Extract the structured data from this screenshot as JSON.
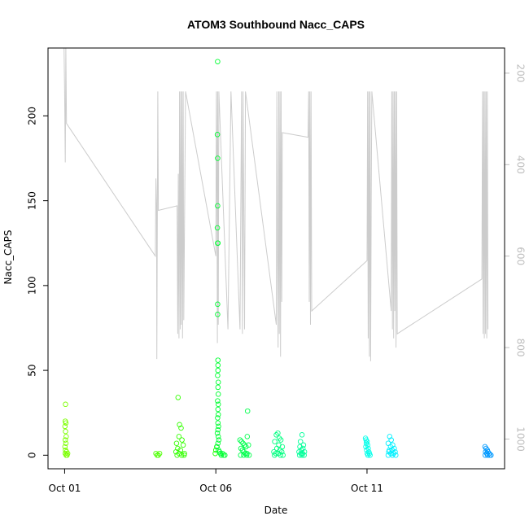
{
  "chart_data": {
    "type": "scatter",
    "title": "ATOM3 Southbound Nacc_CAPS",
    "xlabel": "Date",
    "ylabel": "Nacc_CAPS",
    "xlim": [
      -0.55,
      14.55
    ],
    "ylim": [
      -8,
      240
    ],
    "y_ticks": [
      0,
      50,
      100,
      150,
      200
    ],
    "y_tick_labels": [
      "0",
      "50",
      "100",
      "150",
      "200"
    ],
    "x_ticks": [
      0,
      5,
      10
    ],
    "x_tick_labels": [
      "Oct 01",
      "Oct 06",
      "Oct 11"
    ],
    "right_axis": {
      "label": "",
      "color": "#bebebe",
      "ylim_inverted": [
        145,
        1065
      ],
      "ticks": [
        200,
        400,
        600,
        800,
        1000
      ],
      "tick_labels": [
        "200",
        "400",
        "600",
        "800",
        "1000"
      ]
    },
    "points": [
      {
        "x": 0.03,
        "y": 30,
        "color": "#7cff00"
      },
      {
        "x": 0.02,
        "y": 20,
        "color": "#7cff00"
      },
      {
        "x": 0.04,
        "y": 19,
        "color": "#7cff00"
      },
      {
        "x": 0.01,
        "y": 17,
        "color": "#7cff00"
      },
      {
        "x": 0.03,
        "y": 14,
        "color": "#7cff00"
      },
      {
        "x": 0.05,
        "y": 11,
        "color": "#7cff00"
      },
      {
        "x": 0.02,
        "y": 9,
        "color": "#7cff00"
      },
      {
        "x": 0.04,
        "y": 7,
        "color": "#7cff00"
      },
      {
        "x": 0.01,
        "y": 5,
        "color": "#7cff00"
      },
      {
        "x": 0.03,
        "y": 3,
        "color": "#7cff00"
      },
      {
        "x": 0.06,
        "y": 2,
        "color": "#7cff00"
      },
      {
        "x": 0.02,
        "y": 1,
        "color": "#7cff00"
      },
      {
        "x": 0.05,
        "y": 0,
        "color": "#7cff00"
      },
      {
        "x": 0.08,
        "y": 0,
        "color": "#7cff00"
      },
      {
        "x": 0.1,
        "y": 1,
        "color": "#7cff00"
      },
      {
        "x": 3.02,
        "y": 1,
        "color": "#4dff00"
      },
      {
        "x": 3.06,
        "y": 0,
        "color": "#4dff00"
      },
      {
        "x": 3.1,
        "y": 0,
        "color": "#4dff00"
      },
      {
        "x": 3.14,
        "y": 1,
        "color": "#4dff00"
      },
      {
        "x": 3.75,
        "y": 34,
        "color": "#33ff00"
      },
      {
        "x": 3.8,
        "y": 18,
        "color": "#33ff00"
      },
      {
        "x": 3.85,
        "y": 16,
        "color": "#33ff00"
      },
      {
        "x": 3.78,
        "y": 11,
        "color": "#33ff00"
      },
      {
        "x": 3.88,
        "y": 9,
        "color": "#33ff00"
      },
      {
        "x": 3.7,
        "y": 7,
        "color": "#33ff00"
      },
      {
        "x": 3.92,
        "y": 6,
        "color": "#33ff00"
      },
      {
        "x": 3.74,
        "y": 4,
        "color": "#33ff00"
      },
      {
        "x": 3.83,
        "y": 3,
        "color": "#33ff00"
      },
      {
        "x": 3.68,
        "y": 2,
        "color": "#33ff00"
      },
      {
        "x": 3.96,
        "y": 1,
        "color": "#33ff00"
      },
      {
        "x": 3.79,
        "y": 1,
        "color": "#33ff00"
      },
      {
        "x": 3.87,
        "y": 0,
        "color": "#33ff00"
      },
      {
        "x": 3.72,
        "y": 0,
        "color": "#33ff00"
      },
      {
        "x": 3.95,
        "y": 0,
        "color": "#33ff00"
      },
      {
        "x": 4.98,
        "y": 1,
        "color": "#1aff00"
      },
      {
        "x": 5.0,
        "y": 3,
        "color": "#1aff00"
      },
      {
        "x": 5.03,
        "y": 5,
        "color": "#1aff00"
      },
      {
        "x": 5.06,
        "y": 232,
        "color": "#00ff33"
      },
      {
        "x": 5.05,
        "y": 189,
        "color": "#00ff33"
      },
      {
        "x": 5.06,
        "y": 175,
        "color": "#00ff33"
      },
      {
        "x": 5.06,
        "y": 147,
        "color": "#00ff33"
      },
      {
        "x": 5.05,
        "y": 134,
        "color": "#00ff33"
      },
      {
        "x": 5.06,
        "y": 125,
        "color": "#00ff33"
      },
      {
        "x": 5.07,
        "y": 125,
        "color": "#00ff33"
      },
      {
        "x": 5.06,
        "y": 89,
        "color": "#00ff33"
      },
      {
        "x": 5.06,
        "y": 83,
        "color": "#00ff33"
      },
      {
        "x": 5.07,
        "y": 56,
        "color": "#00ff33"
      },
      {
        "x": 5.07,
        "y": 53,
        "color": "#00ff33"
      },
      {
        "x": 5.07,
        "y": 50,
        "color": "#00ff33"
      },
      {
        "x": 5.06,
        "y": 47,
        "color": "#00ff33"
      },
      {
        "x": 5.08,
        "y": 43,
        "color": "#00ff33"
      },
      {
        "x": 5.07,
        "y": 40,
        "color": "#00ff33"
      },
      {
        "x": 5.08,
        "y": 36,
        "color": "#00ff33"
      },
      {
        "x": 5.06,
        "y": 32,
        "color": "#00ff33"
      },
      {
        "x": 5.08,
        "y": 30,
        "color": "#00ff33"
      },
      {
        "x": 5.07,
        "y": 27,
        "color": "#00ff33"
      },
      {
        "x": 5.08,
        "y": 24,
        "color": "#00ff33"
      },
      {
        "x": 5.06,
        "y": 22,
        "color": "#00ff33"
      },
      {
        "x": 5.07,
        "y": 19,
        "color": "#00ff33"
      },
      {
        "x": 5.09,
        "y": 17,
        "color": "#00ff33"
      },
      {
        "x": 5.07,
        "y": 15,
        "color": "#00ff33"
      },
      {
        "x": 5.05,
        "y": 13,
        "color": "#00ff33"
      },
      {
        "x": 5.08,
        "y": 11,
        "color": "#00ff33"
      },
      {
        "x": 5.1,
        "y": 9,
        "color": "#00ff33"
      },
      {
        "x": 5.07,
        "y": 7,
        "color": "#00ff33"
      },
      {
        "x": 5.04,
        "y": 5,
        "color": "#00ff33"
      },
      {
        "x": 5.09,
        "y": 3,
        "color": "#00ff33"
      },
      {
        "x": 5.12,
        "y": 2,
        "color": "#00ff33"
      },
      {
        "x": 5.15,
        "y": 1,
        "color": "#00ff33"
      },
      {
        "x": 5.18,
        "y": 0,
        "color": "#00ff33"
      },
      {
        "x": 5.22,
        "y": 1,
        "color": "#00ff33"
      },
      {
        "x": 5.26,
        "y": 0,
        "color": "#00ff33"
      },
      {
        "x": 5.3,
        "y": 0,
        "color": "#00ff33"
      },
      {
        "x": 5.8,
        "y": 9,
        "color": "#00ff4d"
      },
      {
        "x": 5.85,
        "y": 8,
        "color": "#00ff4d"
      },
      {
        "x": 5.9,
        "y": 7,
        "color": "#00ff4d"
      },
      {
        "x": 5.95,
        "y": 6,
        "color": "#00ff4d"
      },
      {
        "x": 6.0,
        "y": 5,
        "color": "#00ff4d"
      },
      {
        "x": 6.05,
        "y": 26,
        "color": "#00ff4d"
      },
      {
        "x": 6.04,
        "y": 11,
        "color": "#00ff4d"
      },
      {
        "x": 6.08,
        "y": 6,
        "color": "#00ff4d"
      },
      {
        "x": 5.83,
        "y": 4,
        "color": "#00ff4d"
      },
      {
        "x": 5.88,
        "y": 3,
        "color": "#00ff4d"
      },
      {
        "x": 5.93,
        "y": 2,
        "color": "#00ff4d"
      },
      {
        "x": 5.98,
        "y": 1,
        "color": "#00ff4d"
      },
      {
        "x": 6.03,
        "y": 1,
        "color": "#00ff4d"
      },
      {
        "x": 5.82,
        "y": 0,
        "color": "#00ff4d"
      },
      {
        "x": 5.92,
        "y": 0,
        "color": "#00ff4d"
      },
      {
        "x": 6.02,
        "y": 0,
        "color": "#00ff4d"
      },
      {
        "x": 6.1,
        "y": 0,
        "color": "#00ff4d"
      },
      {
        "x": 7.0,
        "y": 12,
        "color": "#00ff80"
      },
      {
        "x": 7.05,
        "y": 13,
        "color": "#00ff80"
      },
      {
        "x": 7.1,
        "y": 10,
        "color": "#00ff80"
      },
      {
        "x": 7.15,
        "y": 9,
        "color": "#00ff80"
      },
      {
        "x": 6.95,
        "y": 8,
        "color": "#00ff80"
      },
      {
        "x": 7.08,
        "y": 6,
        "color": "#00ff80"
      },
      {
        "x": 7.2,
        "y": 5,
        "color": "#00ff80"
      },
      {
        "x": 7.02,
        "y": 4,
        "color": "#00ff80"
      },
      {
        "x": 7.12,
        "y": 3,
        "color": "#00ff80"
      },
      {
        "x": 6.92,
        "y": 2,
        "color": "#00ff80"
      },
      {
        "x": 7.18,
        "y": 2,
        "color": "#00ff80"
      },
      {
        "x": 7.06,
        "y": 1,
        "color": "#00ff80"
      },
      {
        "x": 6.98,
        "y": 1,
        "color": "#00ff80"
      },
      {
        "x": 7.14,
        "y": 0,
        "color": "#00ff80"
      },
      {
        "x": 6.94,
        "y": 0,
        "color": "#00ff80"
      },
      {
        "x": 7.22,
        "y": 0,
        "color": "#00ff80"
      },
      {
        "x": 7.85,
        "y": 12,
        "color": "#00ff99"
      },
      {
        "x": 7.8,
        "y": 8,
        "color": "#00ff99"
      },
      {
        "x": 7.9,
        "y": 6,
        "color": "#00ff99"
      },
      {
        "x": 7.78,
        "y": 5,
        "color": "#00ff99"
      },
      {
        "x": 7.88,
        "y": 4,
        "color": "#00ff99"
      },
      {
        "x": 7.83,
        "y": 3,
        "color": "#00ff99"
      },
      {
        "x": 7.75,
        "y": 2,
        "color": "#00ff99"
      },
      {
        "x": 7.93,
        "y": 2,
        "color": "#00ff99"
      },
      {
        "x": 7.82,
        "y": 1,
        "color": "#00ff99"
      },
      {
        "x": 7.87,
        "y": 1,
        "color": "#00ff99"
      },
      {
        "x": 7.77,
        "y": 0,
        "color": "#00ff99"
      },
      {
        "x": 7.92,
        "y": 0,
        "color": "#00ff99"
      },
      {
        "x": 7.85,
        "y": 0,
        "color": "#00ff99"
      },
      {
        "x": 9.95,
        "y": 10,
        "color": "#00ffea"
      },
      {
        "x": 9.97,
        "y": 9,
        "color": "#00ffea"
      },
      {
        "x": 10.0,
        "y": 8,
        "color": "#00ffea"
      },
      {
        "x": 9.98,
        "y": 7,
        "color": "#00ffea"
      },
      {
        "x": 10.02,
        "y": 6,
        "color": "#00ffea"
      },
      {
        "x": 9.96,
        "y": 5,
        "color": "#00ffea"
      },
      {
        "x": 10.04,
        "y": 4,
        "color": "#00ffea"
      },
      {
        "x": 9.99,
        "y": 3,
        "color": "#00ffea"
      },
      {
        "x": 10.06,
        "y": 2,
        "color": "#00ffea"
      },
      {
        "x": 10.01,
        "y": 1,
        "color": "#00ffea"
      },
      {
        "x": 10.08,
        "y": 1,
        "color": "#00ffea"
      },
      {
        "x": 10.03,
        "y": 0,
        "color": "#00ffea"
      },
      {
        "x": 10.1,
        "y": 0,
        "color": "#00ffea"
      },
      {
        "x": 10.75,
        "y": 11,
        "color": "#00f0ff"
      },
      {
        "x": 10.8,
        "y": 9,
        "color": "#00f0ff"
      },
      {
        "x": 10.7,
        "y": 7,
        "color": "#00f0ff"
      },
      {
        "x": 10.85,
        "y": 6,
        "color": "#00f0ff"
      },
      {
        "x": 10.78,
        "y": 5,
        "color": "#00f0ff"
      },
      {
        "x": 10.9,
        "y": 4,
        "color": "#00f0ff"
      },
      {
        "x": 10.74,
        "y": 3,
        "color": "#00f0ff"
      },
      {
        "x": 10.83,
        "y": 3,
        "color": "#00f0ff"
      },
      {
        "x": 10.93,
        "y": 2,
        "color": "#00f0ff"
      },
      {
        "x": 10.72,
        "y": 2,
        "color": "#00f0ff"
      },
      {
        "x": 10.88,
        "y": 1,
        "color": "#00f0ff"
      },
      {
        "x": 10.79,
        "y": 1,
        "color": "#00f0ff"
      },
      {
        "x": 10.95,
        "y": 0,
        "color": "#00f0ff"
      },
      {
        "x": 10.7,
        "y": 0,
        "color": "#00f0ff"
      },
      {
        "x": 10.84,
        "y": 0,
        "color": "#00f0ff"
      },
      {
        "x": 13.9,
        "y": 5,
        "color": "#0099ff"
      },
      {
        "x": 13.94,
        "y": 4,
        "color": "#0099ff"
      },
      {
        "x": 13.98,
        "y": 3,
        "color": "#0099ff"
      },
      {
        "x": 13.92,
        "y": 2,
        "color": "#0099ff"
      },
      {
        "x": 14.0,
        "y": 2,
        "color": "#0099ff"
      },
      {
        "x": 13.96,
        "y": 1,
        "color": "#0099ff"
      },
      {
        "x": 14.04,
        "y": 1,
        "color": "#0099ff"
      },
      {
        "x": 13.91,
        "y": 0,
        "color": "#0099ff"
      },
      {
        "x": 13.99,
        "y": 0,
        "color": "#0099ff"
      },
      {
        "x": 14.06,
        "y": 0,
        "color": "#0099ff"
      },
      {
        "x": 14.1,
        "y": 0,
        "color": "#0099ff"
      }
    ],
    "track_series": {
      "name": "right-axis trace",
      "color": "#cccccc",
      "points": [
        [
          -0.02,
          60
        ],
        [
          0.0,
          240
        ],
        [
          0.02,
          395
        ],
        [
          0.04,
          60
        ],
        [
          0.06,
          310
        ],
        [
          3.0,
          600
        ],
        [
          3.02,
          430
        ],
        [
          3.04,
          490
        ],
        [
          3.05,
          825
        ],
        [
          3.08,
          240
        ],
        [
          3.1,
          500
        ],
        [
          3.72,
          490
        ],
        [
          3.74,
          770
        ],
        [
          3.76,
          420
        ],
        [
          3.78,
          780
        ],
        [
          3.8,
          240
        ],
        [
          3.82,
          760
        ],
        [
          3.84,
          240
        ],
        [
          3.86,
          750
        ],
        [
          3.88,
          240
        ],
        [
          3.9,
          780
        ],
        [
          3.92,
          240
        ],
        [
          3.94,
          740
        ],
        [
          4.0,
          240
        ],
        [
          5.0,
          600
        ],
        [
          5.02,
          240
        ],
        [
          5.04,
          520
        ],
        [
          5.05,
          790
        ],
        [
          5.06,
          240
        ],
        [
          5.08,
          750
        ],
        [
          5.1,
          240
        ],
        [
          5.4,
          760
        ],
        [
          5.5,
          240
        ],
        [
          5.8,
          760
        ],
        [
          5.85,
          240
        ],
        [
          5.88,
          770
        ],
        [
          5.9,
          240
        ],
        [
          5.95,
          760
        ],
        [
          5.98,
          240
        ],
        [
          7.0,
          750
        ],
        [
          7.02,
          240
        ],
        [
          7.04,
          610
        ],
        [
          7.06,
          800
        ],
        [
          7.08,
          240
        ],
        [
          7.1,
          770
        ],
        [
          7.12,
          240
        ],
        [
          7.14,
          820
        ],
        [
          7.16,
          240
        ],
        [
          7.18,
          700
        ],
        [
          7.2,
          330
        ],
        [
          8.05,
          340
        ],
        [
          8.07,
          240
        ],
        [
          8.09,
          700
        ],
        [
          8.11,
          240
        ],
        [
          8.13,
          750
        ],
        [
          8.15,
          240
        ],
        [
          8.17,
          720
        ],
        [
          10.0,
          610
        ],
        [
          10.02,
          240
        ],
        [
          10.04,
          780
        ],
        [
          10.06,
          240
        ],
        [
          10.08,
          820
        ],
        [
          10.1,
          240
        ],
        [
          10.12,
          830
        ],
        [
          10.14,
          450
        ],
        [
          10.16,
          240
        ],
        [
          10.8,
          720
        ],
        [
          10.82,
          240
        ],
        [
          10.84,
          760
        ],
        [
          10.86,
          240
        ],
        [
          10.88,
          780
        ],
        [
          10.9,
          240
        ],
        [
          10.92,
          720
        ],
        [
          10.94,
          240
        ],
        [
          10.96,
          800
        ],
        [
          10.98,
          240
        ],
        [
          11.0,
          770
        ],
        [
          13.8,
          650
        ],
        [
          13.82,
          240
        ],
        [
          13.84,
          770
        ],
        [
          13.86,
          240
        ],
        [
          13.88,
          780
        ],
        [
          13.9,
          240
        ],
        [
          13.92,
          770
        ],
        [
          13.94,
          240
        ],
        [
          13.96,
          780
        ],
        [
          13.98,
          240
        ],
        [
          14.0,
          760
        ]
      ]
    }
  }
}
